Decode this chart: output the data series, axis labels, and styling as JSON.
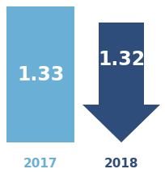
{
  "value_2017": "1.33",
  "value_2018": "1.32",
  "label_2017": "2017",
  "label_2018": "2018",
  "color_2017": "#6aafd6",
  "color_2018": "#2e4d7b",
  "text_color_values": "#ffffff",
  "text_color_labels_2017": "#6aafd6",
  "text_color_labels_2018": "#2e4d7b",
  "bg_color": "#ffffff",
  "fig_width": 2.04,
  "fig_height": 2.15,
  "dpi": 100
}
